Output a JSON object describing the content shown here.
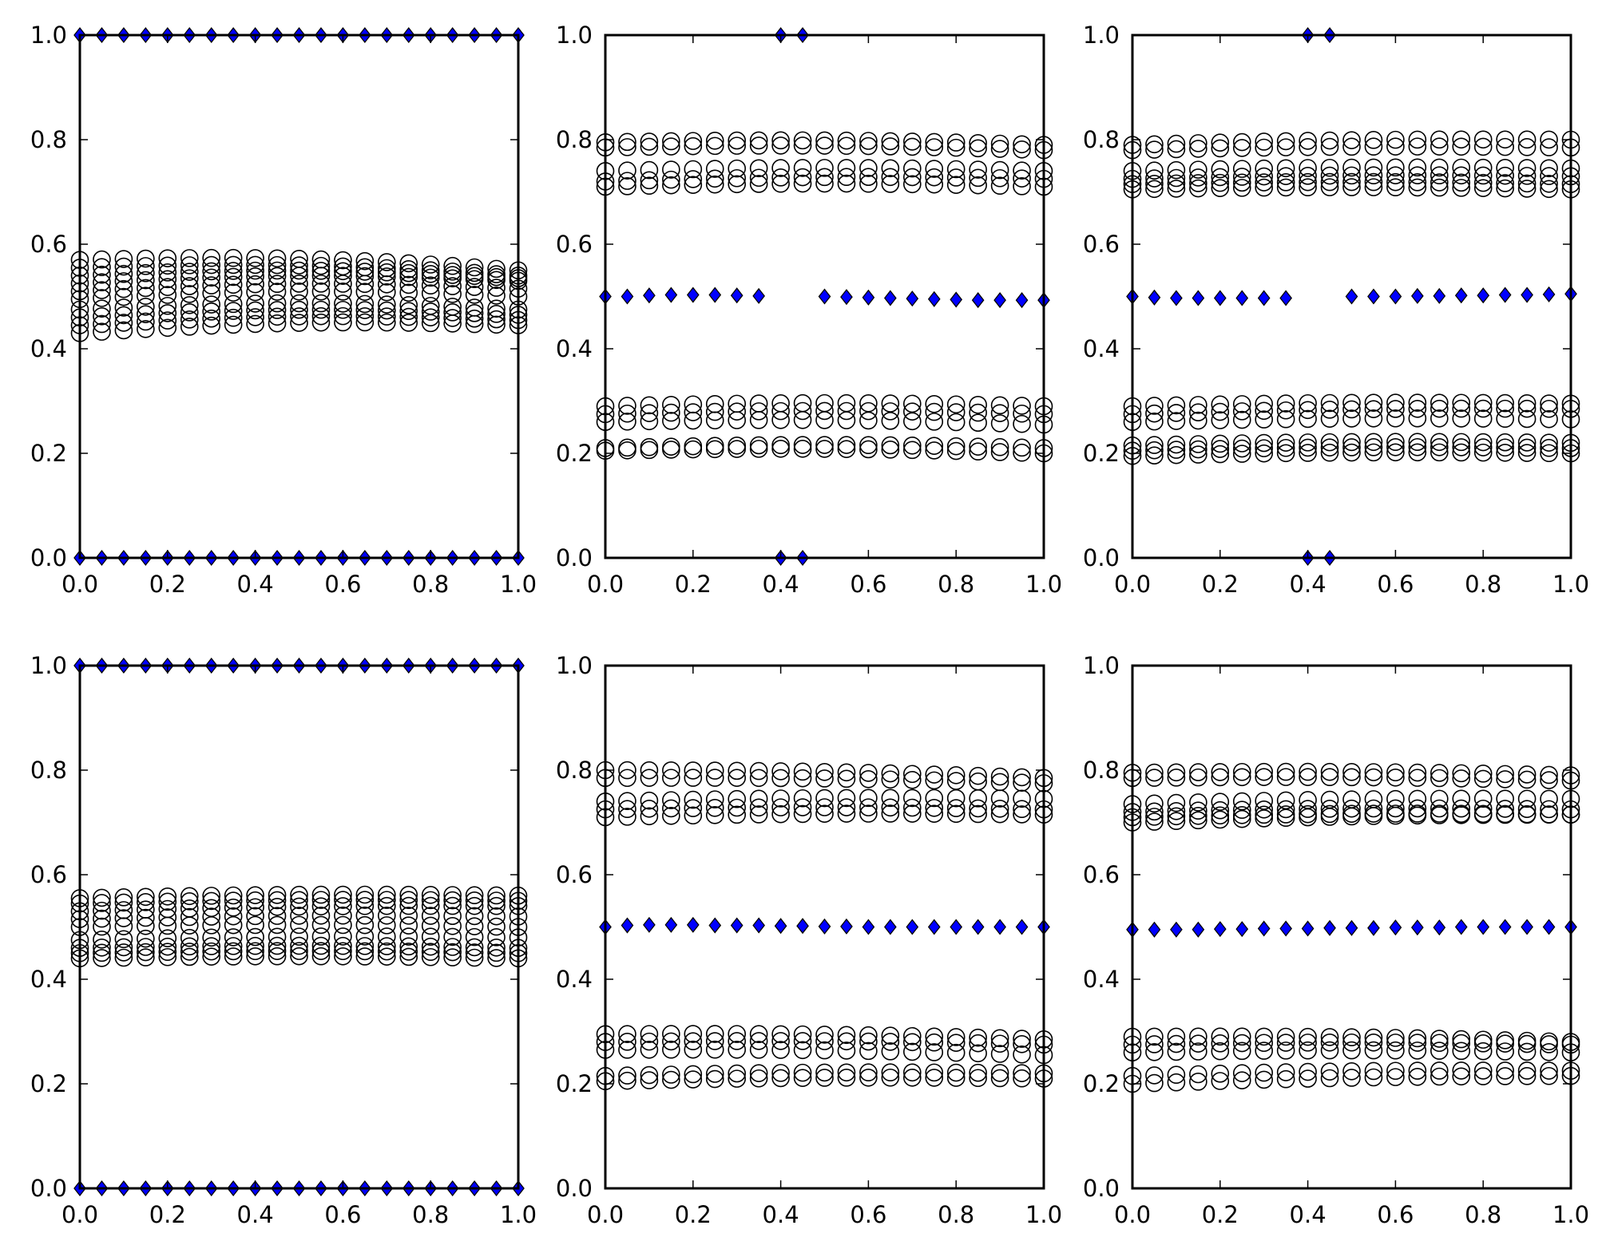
{
  "figure": {
    "background": "#ffffff",
    "grid": "2x3",
    "panel_count": 6
  },
  "style": {
    "circle_marker": "open-circle",
    "circle_edge_color": "#000000",
    "diamond_marker": "diamond",
    "diamond_fill_color": "#0000ff",
    "diamond_edge_color": "#000000",
    "axes_color": "#000000"
  },
  "chart_data": [
    {
      "type": "scatter",
      "row": 0,
      "col": 0,
      "xlim": [
        0,
        1
      ],
      "ylim": [
        0,
        1
      ],
      "xticks": [
        "0.0",
        "0.2",
        "0.4",
        "0.6",
        "0.8",
        "1.0"
      ],
      "yticks": [
        "0.0",
        "0.2",
        "0.4",
        "0.6",
        "0.8",
        "1.0"
      ],
      "grid": false,
      "legend": "none",
      "x": [
        0,
        0.05,
        0.1,
        0.15,
        0.2,
        0.25,
        0.3,
        0.35,
        0.4,
        0.45,
        0.5,
        0.55,
        0.6,
        0.65,
        0.7,
        0.75,
        0.8,
        0.85,
        0.9,
        0.95,
        1.0
      ],
      "circle_series": [
        {
          "start": 0.57,
          "end": 0.55
        },
        {
          "start": 0.555,
          "end": 0.54
        },
        {
          "start": 0.54,
          "end": 0.535
        },
        {
          "start": 0.525,
          "end": 0.53
        },
        {
          "start": 0.51,
          "end": 0.515
        },
        {
          "start": 0.495,
          "end": 0.5
        },
        {
          "start": 0.475,
          "end": 0.475
        },
        {
          "start": 0.46,
          "end": 0.465
        },
        {
          "start": 0.445,
          "end": 0.455
        },
        {
          "start": 0.43,
          "end": 0.445
        }
      ],
      "circle_bulge": 0.012,
      "diamond_series": [
        {
          "y": [
            1,
            1,
            1,
            1,
            1,
            1,
            1,
            1,
            1,
            1,
            1,
            1,
            1,
            1,
            1,
            1,
            1,
            1,
            1,
            1,
            1
          ]
        },
        {
          "y": [
            0,
            0,
            0,
            0,
            0,
            0,
            0,
            0,
            0,
            0,
            0,
            0,
            0,
            0,
            0,
            0,
            0,
            0,
            0,
            0,
            0
          ]
        }
      ]
    },
    {
      "type": "scatter",
      "row": 0,
      "col": 1,
      "xlim": [
        0,
        1
      ],
      "ylim": [
        0,
        1
      ],
      "xticks": [
        "0.0",
        "0.2",
        "0.4",
        "0.6",
        "0.8",
        "1.0"
      ],
      "yticks": [
        "0.0",
        "0.2",
        "0.4",
        "0.6",
        "0.8",
        "1.0"
      ],
      "grid": false,
      "legend": "none",
      "x": [
        0,
        0.05,
        0.1,
        0.15,
        0.2,
        0.25,
        0.3,
        0.35,
        0.4,
        0.45,
        0.5,
        0.55,
        0.6,
        0.65,
        0.7,
        0.75,
        0.8,
        0.85,
        0.9,
        0.95,
        1.0
      ],
      "circle_series": [
        {
          "start": 0.795,
          "end": 0.79
        },
        {
          "start": 0.785,
          "end": 0.78
        },
        {
          "start": 0.74,
          "end": 0.74
        },
        {
          "start": 0.72,
          "end": 0.725
        },
        {
          "start": 0.71,
          "end": 0.71
        },
        {
          "start": 0.29,
          "end": 0.29
        },
        {
          "start": 0.275,
          "end": 0.275
        },
        {
          "start": 0.26,
          "end": 0.255
        },
        {
          "start": 0.21,
          "end": 0.21
        },
        {
          "start": 0.205,
          "end": 0.2
        }
      ],
      "circle_bulge": 0.006,
      "diamond_series": [
        {
          "y": [
            0.5,
            0.5,
            0.502,
            0.503,
            0.503,
            0.503,
            0.502,
            0.501,
            null,
            null,
            0.5,
            0.499,
            0.498,
            0.497,
            0.496,
            0.495,
            0.494,
            0.493,
            0.493,
            0.493,
            0.493
          ]
        },
        {
          "y": [
            null,
            null,
            null,
            null,
            null,
            null,
            null,
            null,
            1,
            1,
            null,
            null,
            null,
            null,
            null,
            null,
            null,
            null,
            null,
            null,
            null
          ]
        },
        {
          "y": [
            null,
            null,
            null,
            null,
            null,
            null,
            null,
            null,
            0,
            0,
            null,
            null,
            null,
            null,
            null,
            null,
            null,
            null,
            null,
            null,
            null
          ]
        }
      ]
    },
    {
      "type": "scatter",
      "row": 0,
      "col": 2,
      "xlim": [
        0,
        1
      ],
      "ylim": [
        0,
        1
      ],
      "xticks": [
        "0.0",
        "0.2",
        "0.4",
        "0.6",
        "0.8",
        "1.0"
      ],
      "yticks": [
        "0.0",
        "0.2",
        "0.4",
        "0.6",
        "0.8",
        "1.0"
      ],
      "grid": false,
      "legend": "none",
      "x": [
        0,
        0.05,
        0.1,
        0.15,
        0.2,
        0.25,
        0.3,
        0.35,
        0.4,
        0.45,
        0.5,
        0.55,
        0.6,
        0.65,
        0.7,
        0.75,
        0.8,
        0.85,
        0.9,
        0.95,
        1.0
      ],
      "circle_series": [
        {
          "start": 0.79,
          "end": 0.8
        },
        {
          "start": 0.78,
          "end": 0.785
        },
        {
          "start": 0.74,
          "end": 0.745
        },
        {
          "start": 0.725,
          "end": 0.73
        },
        {
          "start": 0.715,
          "end": 0.715
        },
        {
          "start": 0.705,
          "end": 0.705
        },
        {
          "start": 0.29,
          "end": 0.295
        },
        {
          "start": 0.275,
          "end": 0.285
        },
        {
          "start": 0.26,
          "end": 0.265
        },
        {
          "start": 0.215,
          "end": 0.22
        },
        {
          "start": 0.205,
          "end": 0.21
        },
        {
          "start": 0.195,
          "end": 0.2
        }
      ],
      "circle_bulge": 0.004,
      "diamond_series": [
        {
          "y": [
            0.5,
            0.498,
            0.497,
            0.497,
            0.497,
            0.497,
            0.497,
            0.497,
            null,
            null,
            0.5,
            0.5,
            0.5,
            0.501,
            0.501,
            0.502,
            0.502,
            0.503,
            0.503,
            0.504,
            0.505
          ]
        },
        {
          "y": [
            null,
            null,
            null,
            null,
            null,
            null,
            null,
            null,
            1,
            1,
            null,
            null,
            null,
            null,
            null,
            null,
            null,
            null,
            null,
            null,
            null
          ]
        },
        {
          "y": [
            null,
            null,
            null,
            null,
            null,
            null,
            null,
            null,
            0,
            0,
            null,
            null,
            null,
            null,
            null,
            null,
            null,
            null,
            null,
            null,
            null
          ]
        }
      ]
    },
    {
      "type": "scatter",
      "row": 1,
      "col": 0,
      "xlim": [
        0,
        1
      ],
      "ylim": [
        0,
        1
      ],
      "xticks": [
        "0.0",
        "0.2",
        "0.4",
        "0.6",
        "0.8",
        "1.0"
      ],
      "yticks": [
        "0.0",
        "0.2",
        "0.4",
        "0.6",
        "0.8",
        "1.0"
      ],
      "grid": false,
      "legend": "none",
      "x": [
        0,
        0.05,
        0.1,
        0.15,
        0.2,
        0.25,
        0.3,
        0.35,
        0.4,
        0.45,
        0.5,
        0.55,
        0.6,
        0.65,
        0.7,
        0.75,
        0.8,
        0.85,
        0.9,
        0.95,
        1.0
      ],
      "circle_series": [
        {
          "start": 0.555,
          "end": 0.56
        },
        {
          "start": 0.545,
          "end": 0.55
        },
        {
          "start": 0.53,
          "end": 0.54
        },
        {
          "start": 0.515,
          "end": 0.52
        },
        {
          "start": 0.5,
          "end": 0.5
        },
        {
          "start": 0.475,
          "end": 0.48
        },
        {
          "start": 0.46,
          "end": 0.46
        },
        {
          "start": 0.45,
          "end": 0.45
        },
        {
          "start": 0.44,
          "end": 0.44
        }
      ],
      "circle_bulge": 0.004,
      "diamond_series": [
        {
          "y": [
            1,
            1,
            1,
            1,
            1,
            1,
            1,
            1,
            1,
            1,
            1,
            1,
            1,
            1,
            1,
            1,
            1,
            1,
            1,
            1,
            1
          ]
        },
        {
          "y": [
            0,
            0,
            0,
            0,
            0,
            0,
            0,
            0,
            0,
            0,
            0,
            0,
            0,
            0,
            0,
            0,
            0,
            0,
            0,
            0,
            0
          ]
        }
      ]
    },
    {
      "type": "scatter",
      "row": 1,
      "col": 1,
      "xlim": [
        0,
        1
      ],
      "ylim": [
        0,
        1
      ],
      "xticks": [
        "0.0",
        "0.2",
        "0.4",
        "0.6",
        "0.8",
        "1.0"
      ],
      "yticks": [
        "0.0",
        "0.2",
        "0.4",
        "0.6",
        "0.8",
        "1.0"
      ],
      "grid": false,
      "legend": "none",
      "x": [
        0,
        0.05,
        0.1,
        0.15,
        0.2,
        0.25,
        0.3,
        0.35,
        0.4,
        0.45,
        0.5,
        0.55,
        0.6,
        0.65,
        0.7,
        0.75,
        0.8,
        0.85,
        0.9,
        0.95,
        1.0
      ],
      "circle_series": [
        {
          "start": 0.8,
          "end": 0.785
        },
        {
          "start": 0.785,
          "end": 0.775
        },
        {
          "start": 0.74,
          "end": 0.745
        },
        {
          "start": 0.725,
          "end": 0.725
        },
        {
          "start": 0.71,
          "end": 0.715
        },
        {
          "start": 0.295,
          "end": 0.285
        },
        {
          "start": 0.28,
          "end": 0.275
        },
        {
          "start": 0.265,
          "end": 0.255
        },
        {
          "start": 0.215,
          "end": 0.22
        },
        {
          "start": 0.205,
          "end": 0.21
        }
      ],
      "circle_bulge": 0.004,
      "diamond_series": [
        {
          "y": [
            0.5,
            0.503,
            0.504,
            0.504,
            0.504,
            0.503,
            0.503,
            0.503,
            0.502,
            0.502,
            0.501,
            0.501,
            0.5,
            0.5,
            0.5,
            0.5,
            0.5,
            0.5,
            0.5,
            0.5,
            0.5
          ]
        }
      ]
    },
    {
      "type": "scatter",
      "row": 1,
      "col": 2,
      "xlim": [
        0,
        1
      ],
      "ylim": [
        0,
        1
      ],
      "xticks": [
        "0.0",
        "0.2",
        "0.4",
        "0.6",
        "0.8",
        "1.0"
      ],
      "yticks": [
        "0.0",
        "0.2",
        "0.4",
        "0.6",
        "0.8",
        "1.0"
      ],
      "grid": false,
      "legend": "none",
      "x": [
        0,
        0.05,
        0.1,
        0.15,
        0.2,
        0.25,
        0.3,
        0.35,
        0.4,
        0.45,
        0.5,
        0.55,
        0.6,
        0.65,
        0.7,
        0.75,
        0.8,
        0.85,
        0.9,
        0.95,
        1.0
      ],
      "circle_series": [
        {
          "start": 0.795,
          "end": 0.79
        },
        {
          "start": 0.785,
          "end": 0.78
        },
        {
          "start": 0.735,
          "end": 0.745
        },
        {
          "start": 0.72,
          "end": 0.725
        },
        {
          "start": 0.71,
          "end": 0.715
        },
        {
          "start": 0.7,
          "end": 0.715
        },
        {
          "start": 0.29,
          "end": 0.28
        },
        {
          "start": 0.275,
          "end": 0.275
        },
        {
          "start": 0.26,
          "end": 0.26
        },
        {
          "start": 0.215,
          "end": 0.225
        },
        {
          "start": 0.2,
          "end": 0.215
        }
      ],
      "circle_bulge": 0.004,
      "diamond_series": [
        {
          "y": [
            0.495,
            0.495,
            0.495,
            0.495,
            0.496,
            0.496,
            0.497,
            0.497,
            0.497,
            0.498,
            0.498,
            0.498,
            0.499,
            0.499,
            0.499,
            0.5,
            0.5,
            0.5,
            0.5,
            0.5,
            0.5
          ]
        }
      ]
    }
  ]
}
